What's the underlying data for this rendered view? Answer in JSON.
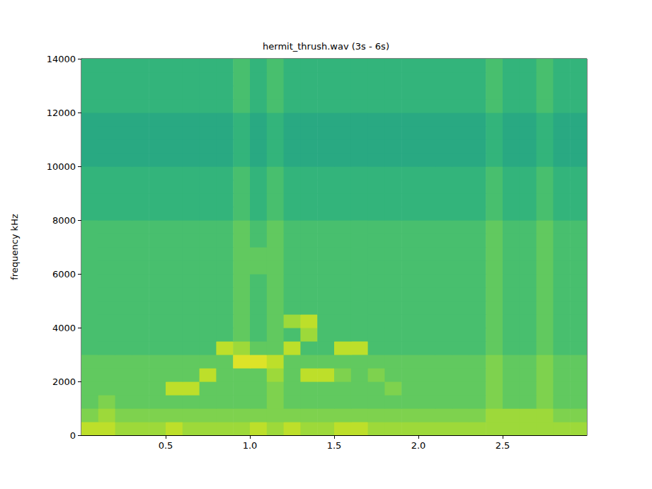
{
  "chart_data": {
    "type": "heatmap",
    "title": "hermit_thrush.wav (3s - 6s)",
    "y_label": "frequency kHz",
    "xlim": [
      0,
      3
    ],
    "xticks": [
      {
        "value": 0.5,
        "label": "0.5"
      },
      {
        "value": 1,
        "label": "1.0"
      },
      {
        "value": 1.5,
        "label": "1.5"
      },
      {
        "value": 2,
        "label": "2.0"
      },
      {
        "value": 2.5,
        "label": "2.5"
      }
    ],
    "ylim": [
      0,
      14000
    ],
    "yticks": [
      0,
      2000,
      4000,
      6000,
      8000,
      10000,
      12000,
      14000
    ],
    "grid": false,
    "x_bins": [
      0,
      0.1,
      0.2,
      0.3,
      0.4,
      0.5,
      0.6,
      0.7,
      0.8,
      0.9,
      1.0,
      1.1,
      1.2,
      1.3,
      1.4,
      1.5,
      1.6,
      1.7,
      1.8,
      1.9,
      2.0,
      2.1,
      2.2,
      2.3,
      2.4,
      2.5,
      2.6,
      2.7,
      2.8,
      2.9,
      3.0
    ],
    "y_bins": [
      0,
      500,
      1000,
      1500,
      2000,
      2500,
      3000,
      3500,
      4000,
      4500,
      5000,
      5500,
      6000,
      6500,
      7000,
      7500,
      8000,
      8500,
      9000,
      9500,
      10000,
      10500,
      11000,
      11500,
      12000,
      12500,
      13000,
      13500,
      14000
    ],
    "color_range": [
      0,
      9
    ],
    "cells": [
      [
        7,
        7,
        6,
        6,
        6,
        7,
        6,
        6,
        6,
        6,
        7,
        6,
        7,
        6,
        6,
        7,
        7,
        6,
        6,
        6,
        6,
        6,
        6,
        6,
        6,
        6,
        6,
        6,
        6,
        6
      ],
      [
        5,
        6,
        5,
        5,
        5,
        5,
        5,
        5,
        5,
        5,
        5,
        5,
        5,
        5,
        5,
        5,
        5,
        5,
        5,
        5,
        5,
        5,
        5,
        5,
        6,
        6,
        6,
        6,
        5,
        5
      ],
      [
        4,
        5,
        4,
        4,
        4,
        4,
        4,
        4,
        4,
        4,
        4,
        5,
        4,
        4,
        4,
        4,
        4,
        4,
        4,
        4,
        4,
        4,
        4,
        4,
        5,
        4,
        4,
        5,
        4,
        4
      ],
      [
        4,
        4,
        4,
        4,
        4,
        7,
        7,
        4,
        4,
        4,
        4,
        5,
        4,
        4,
        4,
        4,
        4,
        4,
        5,
        4,
        4,
        4,
        4,
        4,
        5,
        4,
        4,
        5,
        4,
        4
      ],
      [
        4,
        4,
        4,
        4,
        4,
        4,
        4,
        7,
        4,
        4,
        4,
        6,
        4,
        7,
        7,
        5,
        4,
        5,
        4,
        4,
        4,
        4,
        4,
        4,
        5,
        4,
        4,
        5,
        4,
        4
      ],
      [
        4,
        4,
        4,
        4,
        4,
        4,
        4,
        4,
        4,
        8,
        8,
        7,
        4,
        4,
        4,
        4,
        4,
        4,
        4,
        4,
        4,
        4,
        4,
        4,
        5,
        4,
        4,
        5,
        4,
        4
      ],
      [
        3,
        3,
        3,
        3,
        3,
        3,
        3,
        3,
        7,
        6,
        4,
        4,
        7,
        3,
        3,
        7,
        7,
        3,
        3,
        3,
        3,
        3,
        3,
        3,
        4,
        3,
        3,
        4,
        3,
        3
      ],
      [
        3,
        3,
        3,
        3,
        3,
        3,
        3,
        3,
        3,
        4,
        3,
        4,
        3,
        6,
        3,
        3,
        3,
        3,
        3,
        3,
        3,
        3,
        3,
        3,
        4,
        3,
        3,
        4,
        3,
        3
      ],
      [
        3,
        3,
        3,
        3,
        3,
        3,
        3,
        3,
        3,
        4,
        3,
        4,
        6,
        7,
        3,
        3,
        3,
        3,
        3,
        3,
        3,
        3,
        3,
        3,
        4,
        3,
        3,
        4,
        3,
        3
      ],
      [
        3,
        3,
        3,
        3,
        3,
        3,
        3,
        3,
        3,
        4,
        3,
        4,
        3,
        3,
        3,
        3,
        3,
        3,
        3,
        3,
        3,
        3,
        3,
        3,
        4,
        3,
        3,
        4,
        3,
        3
      ],
      [
        3,
        3,
        3,
        3,
        3,
        3,
        3,
        3,
        3,
        4,
        3,
        4,
        3,
        3,
        3,
        3,
        3,
        3,
        3,
        3,
        3,
        3,
        3,
        3,
        4,
        3,
        3,
        4,
        3,
        3
      ],
      [
        3,
        3,
        3,
        3,
        3,
        3,
        3,
        3,
        3,
        4,
        3,
        4,
        3,
        3,
        3,
        3,
        3,
        3,
        3,
        3,
        3,
        3,
        3,
        3,
        4,
        3,
        3,
        4,
        3,
        3
      ],
      [
        3,
        3,
        3,
        3,
        3,
        3,
        3,
        3,
        3,
        4,
        4,
        4,
        3,
        3,
        3,
        3,
        3,
        3,
        3,
        3,
        3,
        3,
        3,
        3,
        4,
        3,
        3,
        4,
        3,
        3
      ],
      [
        3,
        3,
        3,
        3,
        3,
        3,
        3,
        3,
        3,
        4,
        4,
        4,
        3,
        3,
        3,
        3,
        3,
        3,
        3,
        3,
        3,
        3,
        3,
        3,
        4,
        3,
        3,
        4,
        3,
        3
      ],
      [
        3,
        3,
        3,
        3,
        3,
        3,
        3,
        3,
        3,
        4,
        3,
        4,
        3,
        3,
        3,
        3,
        3,
        3,
        3,
        3,
        3,
        3,
        3,
        3,
        4,
        3,
        3,
        4,
        3,
        3
      ],
      [
        3,
        3,
        3,
        3,
        3,
        3,
        3,
        3,
        3,
        4,
        3,
        4,
        3,
        3,
        3,
        3,
        3,
        3,
        3,
        3,
        3,
        3,
        3,
        3,
        4,
        3,
        3,
        4,
        3,
        3
      ],
      [
        2,
        2,
        2,
        2,
        2,
        2,
        2,
        2,
        2,
        3,
        2,
        3,
        2,
        2,
        2,
        2,
        2,
        2,
        2,
        2,
        2,
        2,
        2,
        2,
        3,
        2,
        2,
        3,
        2,
        2
      ],
      [
        2,
        2,
        2,
        2,
        2,
        2,
        2,
        2,
        2,
        3,
        2,
        3,
        2,
        2,
        2,
        2,
        2,
        2,
        2,
        2,
        2,
        2,
        2,
        2,
        3,
        2,
        2,
        3,
        2,
        2
      ],
      [
        2,
        2,
        2,
        2,
        2,
        2,
        2,
        2,
        2,
        3,
        2,
        3,
        2,
        2,
        2,
        2,
        2,
        2,
        2,
        2,
        2,
        2,
        2,
        2,
        3,
        2,
        2,
        3,
        2,
        2
      ],
      [
        2,
        2,
        2,
        2,
        2,
        2,
        2,
        2,
        2,
        3,
        2,
        3,
        2,
        2,
        2,
        2,
        2,
        2,
        2,
        2,
        2,
        2,
        2,
        2,
        3,
        2,
        2,
        3,
        2,
        2
      ],
      [
        1,
        1,
        1,
        1,
        1,
        1,
        1,
        1,
        1,
        2,
        1,
        2,
        1,
        1,
        1,
        1,
        1,
        1,
        1,
        1,
        1,
        1,
        1,
        1,
        2,
        1,
        1,
        2,
        1,
        1
      ],
      [
        1,
        1,
        1,
        1,
        1,
        1,
        1,
        1,
        1,
        2,
        1,
        2,
        1,
        1,
        1,
        1,
        1,
        1,
        1,
        1,
        1,
        1,
        1,
        1,
        2,
        1,
        1,
        2,
        1,
        1
      ],
      [
        1,
        1,
        1,
        1,
        1,
        1,
        1,
        1,
        1,
        2,
        1,
        2,
        1,
        1,
        1,
        1,
        1,
        1,
        1,
        1,
        1,
        1,
        1,
        1,
        2,
        1,
        1,
        2,
        1,
        1
      ],
      [
        1,
        1,
        1,
        1,
        1,
        1,
        1,
        1,
        1,
        2,
        1,
        2,
        1,
        1,
        1,
        1,
        1,
        1,
        1,
        1,
        1,
        1,
        1,
        1,
        2,
        1,
        1,
        2,
        1,
        1
      ],
      [
        2,
        2,
        2,
        2,
        2,
        2,
        2,
        2,
        2,
        3,
        2,
        3,
        2,
        2,
        2,
        2,
        2,
        2,
        2,
        2,
        2,
        2,
        2,
        2,
        3,
        2,
        2,
        3,
        2,
        2
      ],
      [
        2,
        2,
        2,
        2,
        2,
        2,
        2,
        2,
        2,
        3,
        2,
        3,
        2,
        2,
        2,
        2,
        2,
        2,
        2,
        2,
        2,
        2,
        2,
        2,
        3,
        2,
        2,
        3,
        2,
        2
      ],
      [
        2,
        2,
        2,
        2,
        2,
        2,
        2,
        2,
        2,
        3,
        2,
        3,
        2,
        2,
        2,
        2,
        2,
        2,
        2,
        2,
        2,
        2,
        2,
        2,
        3,
        2,
        2,
        3,
        2,
        2
      ],
      [
        2,
        2,
        2,
        2,
        2,
        2,
        2,
        2,
        2,
        3,
        2,
        3,
        2,
        2,
        2,
        2,
        2,
        2,
        2,
        2,
        2,
        2,
        2,
        2,
        3,
        2,
        2,
        3,
        2,
        2
      ]
    ]
  }
}
